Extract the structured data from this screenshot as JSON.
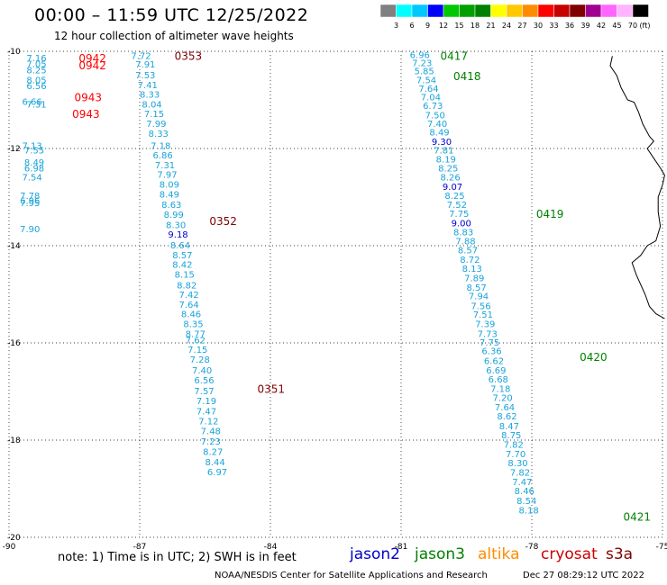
{
  "header": {
    "title": "00:00 – 11:59 UTC 12/25/2022",
    "subtitle": "12 hour collection of altimeter wave heights"
  },
  "colorbar": {
    "unit_label": "(ft)",
    "colors": [
      "#808080",
      "#00ffff",
      "#00c8ff",
      "#0000ff",
      "#00c800",
      "#00a000",
      "#008000",
      "#ffff00",
      "#ffc800",
      "#ff8c00",
      "#ff0000",
      "#c80000",
      "#800000",
      "#a00090",
      "#ff66ff",
      "#ffb4ff",
      "#000000"
    ],
    "labels": [
      "3",
      "6",
      "9",
      "12",
      "15",
      "18",
      "21",
      "24",
      "27",
      "30",
      "33",
      "36",
      "39",
      "42",
      "45",
      "70"
    ]
  },
  "map": {
    "lon_range": [
      -90,
      -75
    ],
    "lat_range": [
      -20,
      -10
    ],
    "lon_ticks": [
      "-90",
      "-87",
      "-84",
      "-81",
      "-78",
      "-75"
    ],
    "lat_ticks": [
      "-10",
      "-12",
      "-14",
      "-16",
      "-18",
      "-20"
    ],
    "grid": "dotted"
  },
  "tracks": [
    {
      "satellite": "jason2",
      "color": "#0000cc",
      "pass_color": "#ff0000",
      "passes": [
        {
          "label": "0942",
          "lon": -88.4,
          "lat": -10.15
        },
        {
          "label": "0942",
          "lon": -88.4,
          "lat": -10.3
        },
        {
          "label": "0943",
          "lon": -88.5,
          "lat": -10.95
        },
        {
          "label": "0943",
          "lon": -88.55,
          "lat": -11.3
        }
      ],
      "points": [
        {
          "v": "7.16",
          "lon": -89.6,
          "lat": -10.15
        },
        {
          "v": "7.05",
          "lon": -89.6,
          "lat": -10.27
        },
        {
          "v": "8.25",
          "lon": -89.6,
          "lat": -10.4
        },
        {
          "v": "8.05",
          "lon": -89.6,
          "lat": -10.6
        },
        {
          "v": "6.56",
          "lon": -89.6,
          "lat": -10.72
        },
        {
          "v": "6.66",
          "lon": -89.7,
          "lat": -11.05
        },
        {
          "v": "7.31",
          "lon": -89.6,
          "lat": -11.1
        },
        {
          "v": "7.13",
          "lon": -89.7,
          "lat": -11.95
        },
        {
          "v": "7.55",
          "lon": -89.65,
          "lat": -12.05
        },
        {
          "v": "8.49",
          "lon": -89.65,
          "lat": -12.3
        },
        {
          "v": "6.98",
          "lon": -89.65,
          "lat": -12.42
        },
        {
          "v": "7.54",
          "lon": -89.7,
          "lat": -12.6
        },
        {
          "v": "7.78",
          "lon": -89.75,
          "lat": -12.98
        },
        {
          "v": "6.96",
          "lon": -89.75,
          "lat": -13.08
        },
        {
          "v": "7.95",
          "lon": -89.75,
          "lat": -13.13
        },
        {
          "v": "7.90",
          "lon": -89.75,
          "lat": -13.67
        }
      ]
    },
    {
      "satellite": "cryosat",
      "color": "#800000",
      "pass_color": "#800000",
      "passes": [
        {
          "label": "0353",
          "lon": -86.2,
          "lat": -10.1
        },
        {
          "label": "0352",
          "lon": -85.4,
          "lat": -13.5
        },
        {
          "label": "0351",
          "lon": -84.3,
          "lat": -16.95
        }
      ],
      "points": [
        {
          "v": "7.72",
          "lon": -87.2,
          "lat": -10.1
        },
        {
          "v": "7.91",
          "lon": -87.1,
          "lat": -10.28
        },
        {
          "v": "7.53",
          "lon": -87.1,
          "lat": -10.5
        },
        {
          "v": "7.41",
          "lon": -87.05,
          "lat": -10.7
        },
        {
          "v": "8.33",
          "lon": -87.0,
          "lat": -10.9
        },
        {
          "v": "8.04",
          "lon": -86.95,
          "lat": -11.1
        },
        {
          "v": "7.15",
          "lon": -86.9,
          "lat": -11.3
        },
        {
          "v": "7.99",
          "lon": -86.85,
          "lat": -11.5
        },
        {
          "v": "8.33",
          "lon": -86.8,
          "lat": -11.7
        },
        {
          "v": "7.18",
          "lon": -86.75,
          "lat": -11.95
        },
        {
          "v": "6.86",
          "lon": -86.7,
          "lat": -12.15
        },
        {
          "v": "7.31",
          "lon": -86.65,
          "lat": -12.35
        },
        {
          "v": "7.97",
          "lon": -86.6,
          "lat": -12.55
        },
        {
          "v": "8.09",
          "lon": -86.55,
          "lat": -12.75
        },
        {
          "v": "8.49",
          "lon": -86.55,
          "lat": -12.95
        },
        {
          "v": "8.63",
          "lon": -86.5,
          "lat": -13.17
        },
        {
          "v": "8.99",
          "lon": -86.45,
          "lat": -13.37
        },
        {
          "v": "8.30",
          "lon": -86.4,
          "lat": -13.58
        },
        {
          "v": "9.18",
          "lon": -86.35,
          "lat": -13.78
        },
        {
          "v": "8.64",
          "lon": -86.3,
          "lat": -14.0
        },
        {
          "v": "8.57",
          "lon": -86.25,
          "lat": -14.2
        },
        {
          "v": "8.42",
          "lon": -86.25,
          "lat": -14.4
        },
        {
          "v": "8.15",
          "lon": -86.2,
          "lat": -14.6
        },
        {
          "v": "8.82",
          "lon": -86.15,
          "lat": -14.82
        },
        {
          "v": "7.42",
          "lon": -86.1,
          "lat": -15.02
        },
        {
          "v": "7.64",
          "lon": -86.1,
          "lat": -15.22
        },
        {
          "v": "8.46",
          "lon": -86.05,
          "lat": -15.42
        },
        {
          "v": "8.35",
          "lon": -86.0,
          "lat": -15.62
        },
        {
          "v": "8.77",
          "lon": -85.95,
          "lat": -15.82
        },
        {
          "v": "7.62",
          "lon": -85.95,
          "lat": -15.95
        },
        {
          "v": "7.15",
          "lon": -85.9,
          "lat": -16.15
        },
        {
          "v": "7.28",
          "lon": -85.85,
          "lat": -16.35
        },
        {
          "v": "7.40",
          "lon": -85.8,
          "lat": -16.57
        },
        {
          "v": "6.56",
          "lon": -85.75,
          "lat": -16.78
        },
        {
          "v": "7.57",
          "lon": -85.75,
          "lat": -17.0
        },
        {
          "v": "7.19",
          "lon": -85.7,
          "lat": -17.2
        },
        {
          "v": "7.47",
          "lon": -85.7,
          "lat": -17.42
        },
        {
          "v": "7.12",
          "lon": -85.65,
          "lat": -17.62
        },
        {
          "v": "7.48",
          "lon": -85.6,
          "lat": -17.82
        },
        {
          "v": "7.23",
          "lon": -85.6,
          "lat": -18.04
        },
        {
          "v": "8.27",
          "lon": -85.55,
          "lat": -18.25
        },
        {
          "v": "8.44",
          "lon": -85.5,
          "lat": -18.46
        },
        {
          "v": "6.97",
          "lon": -85.45,
          "lat": -18.67
        }
      ]
    },
    {
      "satellite": "jason3",
      "color": "#008000",
      "pass_color": "#008000",
      "passes": [
        {
          "label": "0417",
          "lon": -80.1,
          "lat": -10.1
        },
        {
          "label": "0418",
          "lon": -79.8,
          "lat": -10.52
        },
        {
          "label": "0419",
          "lon": -77.9,
          "lat": -13.35
        },
        {
          "label": "0420",
          "lon": -76.9,
          "lat": -16.3
        },
        {
          "label": "0421",
          "lon": -75.9,
          "lat": -19.58
        }
      ],
      "points": [
        {
          "v": "6.96",
          "lon": -80.8,
          "lat": -10.08
        },
        {
          "v": "7.23",
          "lon": -80.75,
          "lat": -10.25
        },
        {
          "v": "5.85",
          "lon": -80.7,
          "lat": -10.42
        },
        {
          "v": "7.54",
          "lon": -80.65,
          "lat": -10.6
        },
        {
          "v": "7.64",
          "lon": -80.6,
          "lat": -10.78
        },
        {
          "v": "7.04",
          "lon": -80.55,
          "lat": -10.95
        },
        {
          "v": "6.73",
          "lon": -80.5,
          "lat": -11.13
        },
        {
          "v": "7.50",
          "lon": -80.45,
          "lat": -11.32
        },
        {
          "v": "7.40",
          "lon": -80.4,
          "lat": -11.5
        },
        {
          "v": "8.49",
          "lon": -80.35,
          "lat": -11.68
        },
        {
          "v": "9.30",
          "lon": -80.3,
          "lat": -11.87
        },
        {
          "v": "7.81",
          "lon": -80.25,
          "lat": -12.05
        },
        {
          "v": "8.19",
          "lon": -80.2,
          "lat": -12.23
        },
        {
          "v": "8.25",
          "lon": -80.15,
          "lat": -12.42
        },
        {
          "v": "8.26",
          "lon": -80.1,
          "lat": -12.6
        },
        {
          "v": "9.07",
          "lon": -80.05,
          "lat": -12.8
        },
        {
          "v": "8.25",
          "lon": -80.0,
          "lat": -12.98
        },
        {
          "v": "7.52",
          "lon": -79.95,
          "lat": -13.17
        },
        {
          "v": "7.75",
          "lon": -79.9,
          "lat": -13.35
        },
        {
          "v": "9.00",
          "lon": -79.85,
          "lat": -13.55
        },
        {
          "v": "8.83",
          "lon": -79.8,
          "lat": -13.73
        },
        {
          "v": "7.88",
          "lon": -79.75,
          "lat": -13.92
        },
        {
          "v": "8.57",
          "lon": -79.7,
          "lat": -14.1
        },
        {
          "v": "8.72",
          "lon": -79.65,
          "lat": -14.3
        },
        {
          "v": "8.13",
          "lon": -79.6,
          "lat": -14.48
        },
        {
          "v": "7.89",
          "lon": -79.55,
          "lat": -14.68
        },
        {
          "v": "8.57",
          "lon": -79.5,
          "lat": -14.87
        },
        {
          "v": "7.94",
          "lon": -79.45,
          "lat": -15.05
        },
        {
          "v": "7.56",
          "lon": -79.4,
          "lat": -15.25
        },
        {
          "v": "7.51",
          "lon": -79.35,
          "lat": -15.43
        },
        {
          "v": "7.39",
          "lon": -79.3,
          "lat": -15.62
        },
        {
          "v": "7.73",
          "lon": -79.25,
          "lat": -15.82
        },
        {
          "v": "7.75",
          "lon": -79.2,
          "lat": -16.0
        },
        {
          "v": "6.36",
          "lon": -79.15,
          "lat": -16.18
        },
        {
          "v": "6.62",
          "lon": -79.1,
          "lat": -16.38
        },
        {
          "v": "6.69",
          "lon": -79.05,
          "lat": -16.57
        },
        {
          "v": "6.68",
          "lon": -79.0,
          "lat": -16.76
        },
        {
          "v": "7.18",
          "lon": -78.95,
          "lat": -16.95
        },
        {
          "v": "7.20",
          "lon": -78.9,
          "lat": -17.14
        },
        {
          "v": "7.64",
          "lon": -78.85,
          "lat": -17.33
        },
        {
          "v": "8.62",
          "lon": -78.8,
          "lat": -17.52
        },
        {
          "v": "8.47",
          "lon": -78.75,
          "lat": -17.72
        },
        {
          "v": "8.75",
          "lon": -78.7,
          "lat": -17.91
        },
        {
          "v": "7.82",
          "lon": -78.65,
          "lat": -18.1
        },
        {
          "v": "7.70",
          "lon": -78.6,
          "lat": -18.3
        },
        {
          "v": "8.30",
          "lon": -78.55,
          "lat": -18.48
        },
        {
          "v": "7.82",
          "lon": -78.5,
          "lat": -18.68
        },
        {
          "v": "7.47",
          "lon": -78.45,
          "lat": -18.87
        },
        {
          "v": "8.46",
          "lon": -78.4,
          "lat": -19.06
        },
        {
          "v": "8.54",
          "lon": -78.35,
          "lat": -19.26
        },
        {
          "v": "8.18",
          "lon": -78.3,
          "lat": -19.45
        }
      ]
    }
  ],
  "footer": {
    "note": "note: 1) Time is in UTC; 2) SWH is in feet",
    "satellites": [
      {
        "name": "jason2",
        "color": "#0000cc"
      },
      {
        "name": "jason3",
        "color": "#008000"
      },
      {
        "name": "altika",
        "color": "#ff8c00"
      },
      {
        "name": "cryosat",
        "color": "#cc0000"
      },
      {
        "name": "s3a",
        "color": "#800000"
      }
    ],
    "credit": "NOAA/NESDIS Center for Satellite Applications and Research",
    "timestamp": "Dec 27 08:29:12 UTC 2022"
  }
}
